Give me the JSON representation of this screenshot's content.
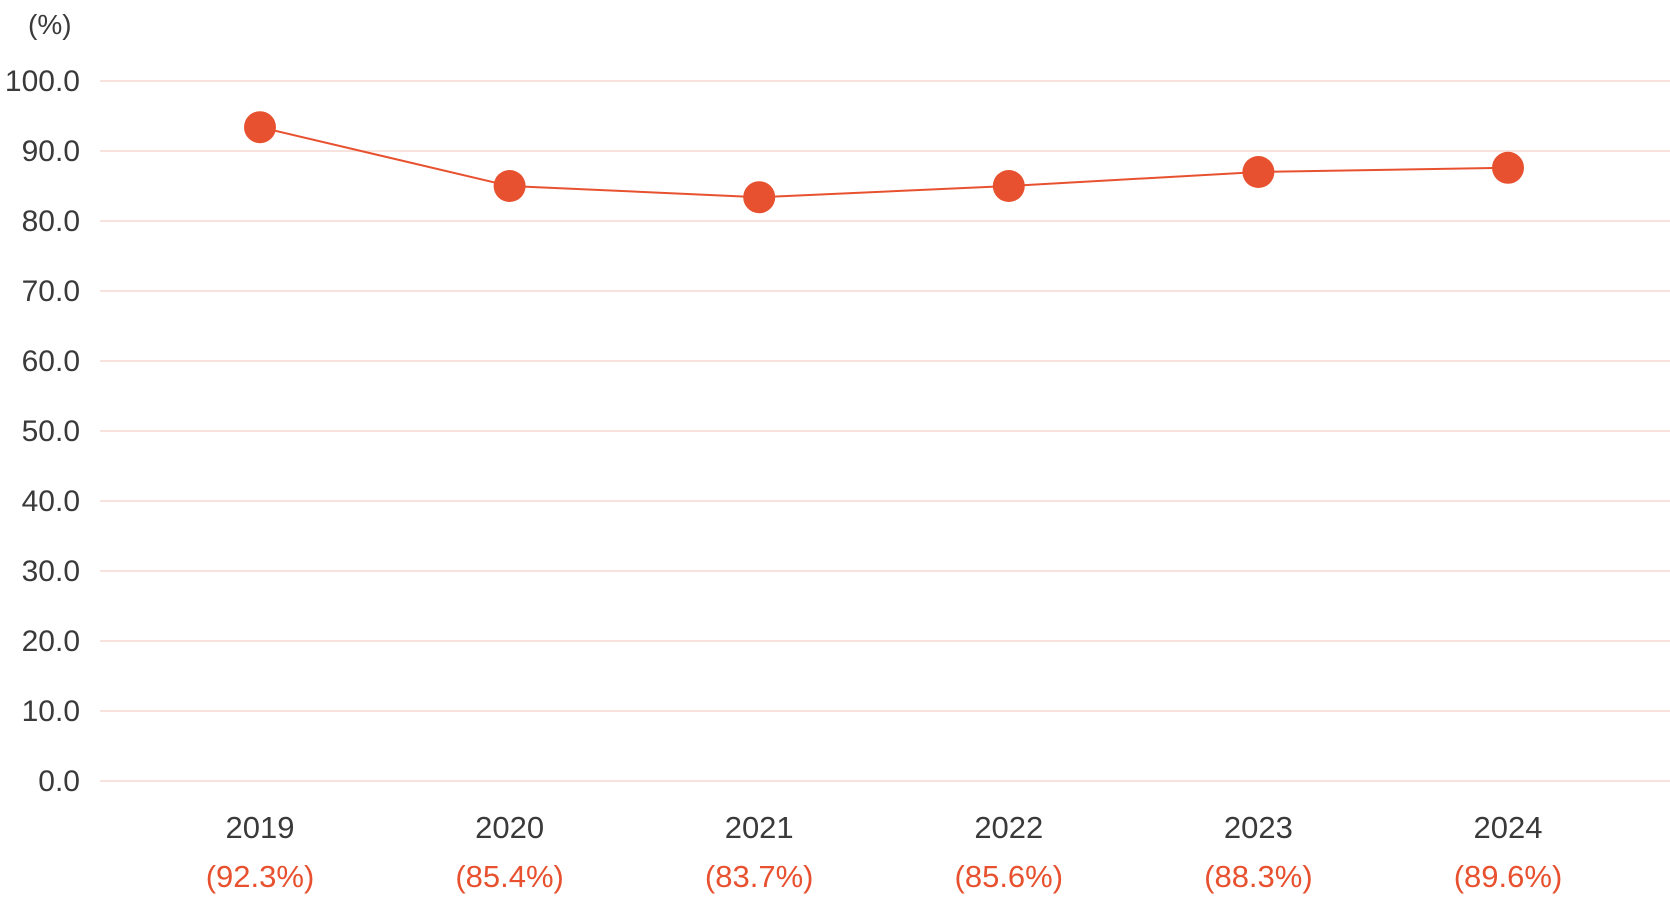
{
  "chart_data": {
    "type": "line",
    "unit_label": "(%)",
    "categories": [
      "2019",
      "2020",
      "2021",
      "2022",
      "2023",
      "2024"
    ],
    "category_sublabels": [
      "(92.3%)",
      "(85.4%)",
      "(83.7%)",
      "(85.6%)",
      "(88.3%)",
      "(89.6%)"
    ],
    "series": [
      {
        "values": [
          93.4,
          85.0,
          83.4,
          85.0,
          87.0,
          87.6
        ],
        "color": "#e8512f"
      }
    ],
    "ylim": [
      0,
      100
    ],
    "yticks": [
      "0.0",
      "10.0",
      "20.0",
      "30.0",
      "40.0",
      "50.0",
      "60.0",
      "70.0",
      "80.0",
      "90.0",
      "100.0"
    ],
    "grid": true,
    "grid_color": "#f6d9d2",
    "accent_color": "#e8512f"
  }
}
